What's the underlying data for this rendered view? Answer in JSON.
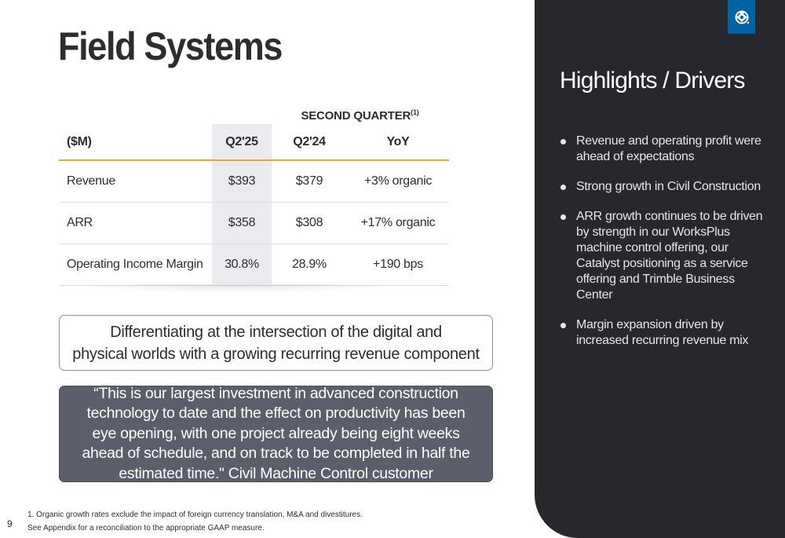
{
  "slide": {
    "title": "Field Systems",
    "page_number": "9"
  },
  "table": {
    "period_header": "SECOND QUARTER",
    "period_header_sup": "(1)",
    "columns": [
      "($M)",
      "Q2'25",
      "Q2'24",
      "YoY"
    ],
    "rows": [
      {
        "label": "Revenue",
        "q225": "$393",
        "q224": "$379",
        "yoy": "+3% organic"
      },
      {
        "label": "ARR",
        "q225": "$358",
        "q224": "$308",
        "yoy": "+17% organic"
      },
      {
        "label": "Operating Income Margin",
        "q225": "30.8%",
        "q224": "28.9%",
        "yoy": "+190 bps"
      }
    ]
  },
  "callout": {
    "line1": "Differentiating at the intersection of the digital and",
    "line2": "physical worlds with a growing recurring revenue component"
  },
  "quote": {
    "text": "“This is our largest investment in advanced construction technology to date and the effect on productivity has been eye opening, with one project already being eight weeks ahead of schedule, and on track to be completed in half the estimated time.\" Civil Machine Control customer"
  },
  "footnotes": {
    "note1": "1.  Organic growth rates exclude the impact of foreign currency translation, M&A and divestitures.",
    "note2": "See Appendix for a reconciliation to the appropriate GAAP measure."
  },
  "panel": {
    "title": "Highlights / Drivers",
    "bullets": [
      "Revenue and operating profit were ahead of expectations",
      "Strong growth in Civil Construction",
      "ARR growth continues to be driven by strength in our WorksPlus machine control offering, our Catalyst positioning as a service offering and Trimble Business Center",
      "Margin expansion driven by increased recurring revenue mix"
    ],
    "logo_icon": "trimble-globe-icon",
    "colors": {
      "panel_bg": "#26282c",
      "logo_bg": "#0063a3",
      "accent_rule": "#f0a81e",
      "quote_bg": "#5a5f6b"
    }
  }
}
